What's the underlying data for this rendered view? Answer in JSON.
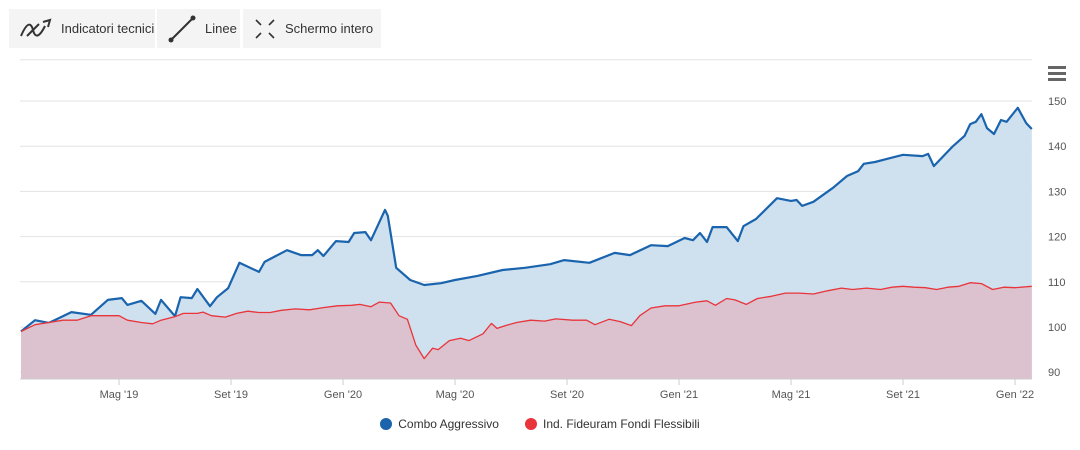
{
  "toolbar": {
    "indicators": "Indicatori tecnici",
    "lines": "Linee",
    "fullscreen": "Schermo intero"
  },
  "colors": {
    "blue": "#1a64ae",
    "red": "#e8343a",
    "blue_fill": "#cfe0ee",
    "red_fill": "#dbbfca"
  },
  "chart_data": {
    "type": "area",
    "title": "",
    "xlabel": "",
    "ylabel": "",
    "x_unit": "months since Jan 2019",
    "ylim": [
      88.5,
      160
    ],
    "yticks": [
      90,
      100,
      110,
      120,
      130,
      140,
      150
    ],
    "ytick_labels": [
      "90",
      "100",
      "110",
      "120",
      "130",
      "140",
      "150"
    ],
    "xticks": [
      4,
      8,
      12,
      16,
      20,
      24,
      28,
      32,
      36
    ],
    "xtick_labels": [
      "Mag '19",
      "Set '19",
      "Gen '20",
      "Mag '20",
      "Set '20",
      "Gen '21",
      "Mag '21",
      "Set '21",
      "Gen '22"
    ],
    "grid": true,
    "legend_position": "bottom-center",
    "series": [
      {
        "name": "Combo Aggressivo",
        "x": [
          0.5,
          1.0,
          1.5,
          2.3,
          3.0,
          3.6,
          4.1,
          4.3,
          4.8,
          5.3,
          5.5,
          6.0,
          6.2,
          6.6,
          6.8,
          7.25,
          7.5,
          7.9,
          8.3,
          9.0,
          9.2,
          9.6,
          10.0,
          10.5,
          10.9,
          11.1,
          11.3,
          11.75,
          12.2,
          12.4,
          12.8,
          13.0,
          13.5,
          13.6,
          13.9,
          14.4,
          14.9,
          15.5,
          16.0,
          16.8,
          17.7,
          18.5,
          19.4,
          19.9,
          20.8,
          21.7,
          22.25,
          23.0,
          23.6,
          24.2,
          24.5,
          24.75,
          25.0,
          25.2,
          25.7,
          26.1,
          26.3,
          26.75,
          27.5,
          28.0,
          28.2,
          28.4,
          28.8,
          29.5,
          30.0,
          30.4,
          30.6,
          31.0,
          32.0,
          32.7,
          32.9,
          33.1,
          33.75,
          34.2,
          34.4,
          34.6,
          34.8,
          35.0,
          35.25,
          35.5,
          35.7,
          36.1,
          36.4,
          36.6
        ],
        "values": [
          99,
          101.5,
          100.9,
          103.3,
          102.7,
          106.0,
          106.4,
          104.9,
          105.8,
          102.9,
          106.0,
          102.4,
          106.6,
          106.4,
          108.4,
          104.6,
          106.6,
          108.6,
          114.2,
          112.2,
          114.4,
          115.7,
          117.0,
          115.9,
          115.9,
          117.0,
          115.7,
          119.0,
          118.8,
          120.8,
          121.0,
          119.2,
          125.9,
          124.6,
          113.1,
          110.4,
          109.3,
          109.7,
          110.4,
          111.3,
          112.6,
          113.1,
          113.9,
          114.8,
          114.2,
          116.4,
          115.9,
          118.1,
          117.9,
          119.7,
          119.2,
          120.8,
          118.8,
          122.1,
          122.1,
          119.0,
          122.3,
          123.9,
          128.5,
          127.9,
          128.1,
          126.8,
          127.7,
          130.8,
          133.4,
          134.5,
          136.1,
          136.5,
          138.1,
          137.8,
          138.3,
          135.6,
          139.8,
          142.3,
          144.9,
          145.4,
          147.1,
          144.0,
          142.7,
          145.8,
          145.4,
          148.5,
          145.1,
          143.8
        ]
      },
      {
        "name": "Ind. Fideuram Fondi Flessibili",
        "x": [
          0.5,
          1.0,
          1.5,
          2.0,
          2.5,
          3.0,
          3.5,
          4.0,
          4.3,
          4.8,
          5.2,
          5.5,
          6.0,
          6.3,
          6.8,
          7.0,
          7.3,
          7.8,
          8.2,
          8.6,
          9.0,
          9.4,
          9.8,
          10.3,
          10.8,
          11.3,
          11.8,
          12.3,
          12.6,
          13.0,
          13.3,
          13.7,
          14.0,
          14.3,
          14.6,
          14.9,
          15.2,
          15.4,
          15.8,
          16.2,
          16.5,
          17.0,
          17.3,
          17.5,
          17.8,
          18.2,
          18.7,
          19.2,
          19.6,
          20.2,
          20.7,
          21.0,
          21.5,
          21.9,
          22.3,
          22.6,
          23.0,
          23.5,
          24.0,
          24.6,
          25.0,
          25.3,
          25.7,
          26.0,
          26.4,
          26.8,
          27.3,
          27.8,
          28.3,
          28.8,
          29.3,
          29.8,
          30.2,
          30.7,
          31.2,
          31.6,
          32.0,
          32.4,
          32.8,
          33.2,
          33.6,
          34.0,
          34.4,
          34.8,
          35.2,
          35.6,
          36.0,
          36.6
        ],
        "values": [
          99,
          100.5,
          101,
          101.5,
          101.5,
          102.5,
          102.5,
          102.5,
          101.5,
          101,
          100.7,
          101.5,
          102.3,
          103,
          103,
          103.3,
          102.5,
          102.2,
          103,
          103.5,
          103.2,
          103.2,
          103.7,
          104,
          103.8,
          104.3,
          104.7,
          104.8,
          105,
          104.5,
          105.5,
          105.3,
          102.5,
          101.7,
          96,
          93,
          95.3,
          95,
          97,
          97.5,
          97,
          98.5,
          100.8,
          99.7,
          100.3,
          101,
          101.5,
          101.3,
          101.8,
          101.5,
          101.5,
          100.5,
          101.7,
          101.2,
          100.3,
          102.5,
          104.2,
          104.7,
          104.7,
          105.5,
          105.8,
          104.8,
          106.3,
          106,
          105,
          106.3,
          106.8,
          107.5,
          107.5,
          107.3,
          108,
          108.6,
          108.3,
          108.6,
          108.3,
          108.8,
          109,
          108.8,
          108.7,
          108.3,
          108.8,
          109,
          109.8,
          109.6,
          108.3,
          108.8,
          108.7,
          109
        ]
      }
    ]
  }
}
